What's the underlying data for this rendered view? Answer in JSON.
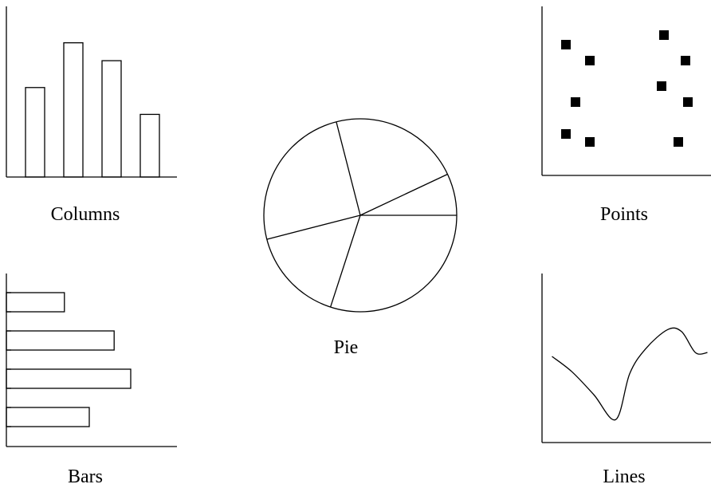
{
  "chart_data": [
    {
      "type": "bar",
      "orientation": "vertical",
      "caption": "Columns",
      "axis_ticks": false,
      "values": [
        5,
        7.5,
        6.5,
        3.5
      ]
    },
    {
      "type": "pie",
      "caption": "Pie",
      "values": [
        7,
        22,
        25,
        16,
        30
      ]
    },
    {
      "type": "scatter",
      "caption": "Points",
      "x": [
        1.0,
        2.0,
        5.1,
        6.0,
        1.4,
        5.0,
        6.1,
        1.0,
        2.0,
        5.7
      ],
      "y": [
        8.2,
        7.2,
        8.8,
        7.2,
        4.6,
        5.6,
        4.6,
        2.6,
        2.1,
        2.1
      ]
    },
    {
      "type": "bar",
      "orientation": "horizontal",
      "caption": "Bars",
      "axis_ticks": true,
      "values": [
        3.5,
        6.5,
        7.5,
        5.0
      ]
    },
    {
      "type": "line",
      "caption": "Lines",
      "x": [
        0.5,
        1.5,
        2.6,
        3.7,
        4.4,
        5.2,
        6.3,
        7.0,
        7.7,
        8.3
      ],
      "y": [
        4.5,
        3.7,
        2.5,
        1.2,
        3.6,
        4.9,
        5.9,
        5.8,
        4.7,
        4.7
      ]
    }
  ]
}
